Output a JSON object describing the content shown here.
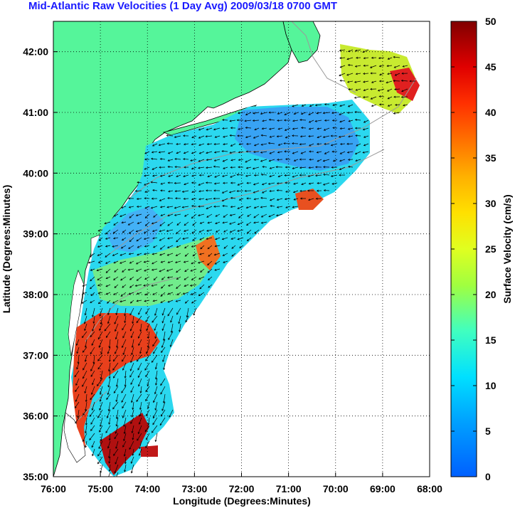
{
  "title": "Mid-Atlantic Raw Velocities (1 Day Avg) 2009/03/18 0700 GMT",
  "x_axis": {
    "label": "Longitude (Degrees:Minutes)",
    "ticks": [
      "76:00",
      "75:00",
      "74:00",
      "73:00",
      "72:00",
      "71:00",
      "70:00",
      "69:00",
      "68:00"
    ]
  },
  "y_axis": {
    "label": "Latitude (Degrees:Minutes)",
    "ticks": [
      "35:00",
      "36:00",
      "37:00",
      "38:00",
      "39:00",
      "40:00",
      "41:00",
      "42:00"
    ]
  },
  "colorbar": {
    "label": "Surface Velocity (cm/s)",
    "ticks": [
      "0",
      "5",
      "10",
      "15",
      "20",
      "25",
      "30",
      "35",
      "40",
      "45",
      "50"
    ],
    "range": [
      0,
      50
    ]
  },
  "colors": {
    "land": "#55f59a",
    "ocean": "#ffffff",
    "title": "#1a1aff",
    "grid": "#000000",
    "bathymetry": "#9a9a9a"
  },
  "map": {
    "lon_range": [
      -76,
      -68
    ],
    "lat_range": [
      35,
      42.5
    ],
    "grid": "dotted",
    "projection": "plate-carree"
  }
}
